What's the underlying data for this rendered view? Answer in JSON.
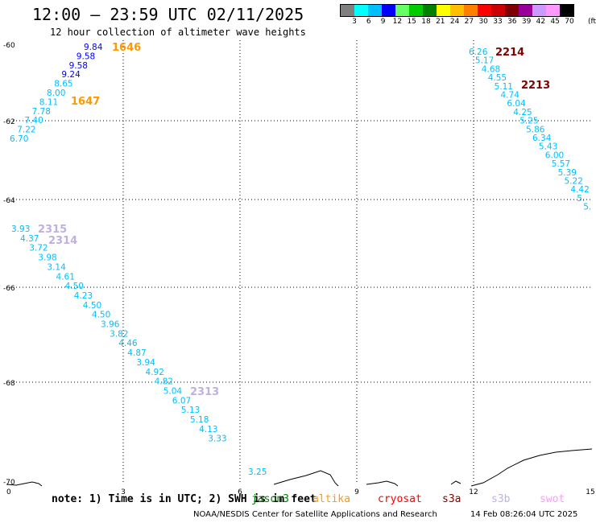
{
  "header": {
    "title": "12:00 – 23:59 UTC 02/11/2025",
    "subtitle": "12 hour collection of altimeter wave heights"
  },
  "legend": {
    "labels": [
      "3",
      "6",
      "9",
      "12",
      "15",
      "18",
      "21",
      "24",
      "27",
      "30",
      "33",
      "36",
      "39",
      "42",
      "45",
      "70"
    ],
    "unit": "(ft)",
    "colors": [
      "#808080",
      "#00ffff",
      "#00bfff",
      "#0000ff",
      "#66ff66",
      "#00cc00",
      "#008000",
      "#ffff00",
      "#ffbf00",
      "#ff8000",
      "#ff0000",
      "#cc0000",
      "#800000",
      "#990099",
      "#cc99ff",
      "#ff99ff",
      "#000000"
    ]
  },
  "map": {
    "x_ticks": [
      "0",
      "3",
      "6",
      "9",
      "12",
      "15"
    ],
    "y_ticks": [
      "-60",
      "-62",
      "-64",
      "-66",
      "-68",
      "-70"
    ]
  },
  "passes": [
    {
      "label": "1646",
      "color": "#ff9900"
    },
    {
      "label": "1647",
      "color": "#ff9900"
    },
    {
      "label": "2214",
      "color": "#800000"
    },
    {
      "label": "2213",
      "color": "#800000"
    },
    {
      "label": "2315",
      "color": "#c0b0e0"
    },
    {
      "label": "2314",
      "color": "#c0b0e0"
    },
    {
      "label": "2313",
      "color": "#c0b0e0"
    }
  ],
  "track_a": {
    "color": "#00bfff",
    "values": [
      "9.84",
      "9.58",
      "9.58",
      "9.24",
      "8.65",
      "8.00",
      "8.11",
      "7.78",
      "7.40",
      "7.22",
      "6.70"
    ],
    "colors": [
      "#0000ff",
      "#0000ff",
      "#0000ff",
      "#0000ff",
      "#00bfff",
      "#00bfff",
      "#00bfff",
      "#00bfff",
      "#00bfff",
      "#00bfff",
      "#00bfff"
    ]
  },
  "track_b": {
    "values": [
      "6.26",
      "5.17",
      "4.68",
      "4.55",
      "5.11",
      "4.74",
      "6.04",
      "4.25",
      "5.25",
      "5.86",
      "6.34",
      "5.43",
      "6.00",
      "5.57",
      "5.39",
      "5.22",
      "4.42",
      "5.",
      "5."
    ]
  },
  "track_c": {
    "values": [
      "3.93",
      "4.37",
      "3.72",
      "3.98",
      "3.14",
      "4.61",
      "4.50",
      "4.23",
      "4.50",
      "4.50",
      "3.96",
      "3.82",
      "4.46",
      "4.87",
      "3.94",
      "4.92",
      "4.82",
      "5.04",
      "6.07",
      "5.13",
      "5.18",
      "4.13",
      "3.33"
    ]
  },
  "track_d": {
    "values": [
      "3.25"
    ]
  },
  "footer": {
    "note": "note: 1) Time is in UTC; 2) SWH is in feet",
    "satellites": [
      {
        "name": "jason3",
        "color": "#008000"
      },
      {
        "name": "altika",
        "color": "#ff9900"
      },
      {
        "name": "cryosat",
        "color": "#ff0000"
      },
      {
        "name": "s3a",
        "color": "#800000"
      },
      {
        "name": "s3b",
        "color": "#c0b0e0"
      },
      {
        "name": "swot",
        "color": "#ff99ff"
      }
    ],
    "credit": "NOAA/NESDIS Center for Satellite Applications and Research",
    "timestamp": "14 Feb 08:26:04 UTC 2025"
  }
}
